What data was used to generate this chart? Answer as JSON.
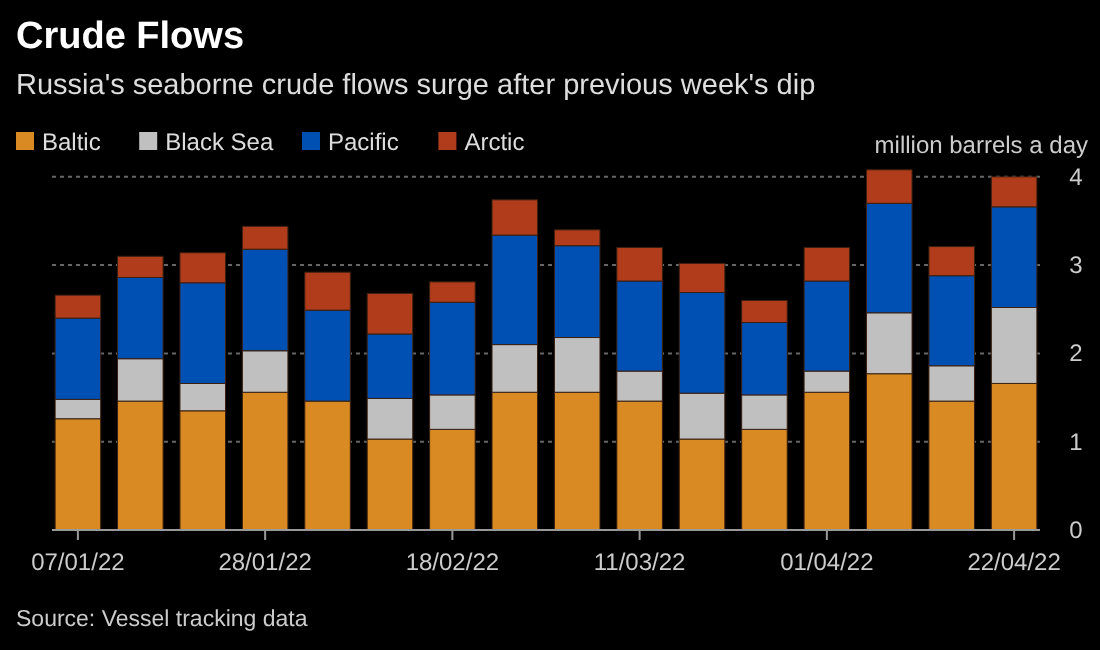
{
  "chart_data": {
    "type": "bar",
    "title": "Crude Flows",
    "subtitle": "Russia's seaborne crude flows surge after previous week's dip",
    "categories": [
      "07/01/22",
      null,
      null,
      "28/01/22",
      null,
      null,
      "18/02/22",
      null,
      null,
      "11/03/22",
      null,
      null,
      "01/04/22",
      null,
      null,
      "22/04/22"
    ],
    "series": [
      {
        "name": "Baltic",
        "color": "#d98a22",
        "values": [
          1.26,
          1.46,
          1.35,
          1.56,
          1.46,
          1.03,
          1.14,
          1.56,
          1.56,
          1.46,
          1.03,
          1.14,
          1.56,
          1.77,
          1.46,
          1.66
        ]
      },
      {
        "name": "Black Sea",
        "color": "#c0c0c0",
        "values": [
          0.22,
          0.48,
          0.31,
          0.47,
          0,
          0.46,
          0.39,
          0.54,
          0.62,
          0.34,
          0.52,
          0.39,
          0.24,
          0.69,
          0.4,
          0.86
        ]
      },
      {
        "name": "Pacific",
        "color": "#0050b4",
        "values": [
          0.92,
          0.92,
          1.14,
          1.15,
          1.03,
          0.73,
          1.05,
          1.24,
          1.04,
          1.02,
          1.14,
          0.82,
          1.02,
          1.24,
          1.02,
          1.14
        ]
      },
      {
        "name": "Arctic",
        "color": "#b03c1c",
        "values": [
          0.26,
          0.24,
          0.34,
          0.26,
          0.43,
          0.46,
          0.23,
          0.4,
          0.18,
          0.38,
          0.33,
          0.25,
          0.38,
          0.38,
          0.33,
          0.34
        ]
      }
    ],
    "stacked": true,
    "ylim": [
      0,
      4.1
    ],
    "yticks": [
      0,
      1,
      2,
      3,
      4
    ],
    "ylabel": "million barrels a day",
    "grid": "y",
    "legend": "top left",
    "annotations": [
      "Source: Vessel tracking data"
    ]
  }
}
